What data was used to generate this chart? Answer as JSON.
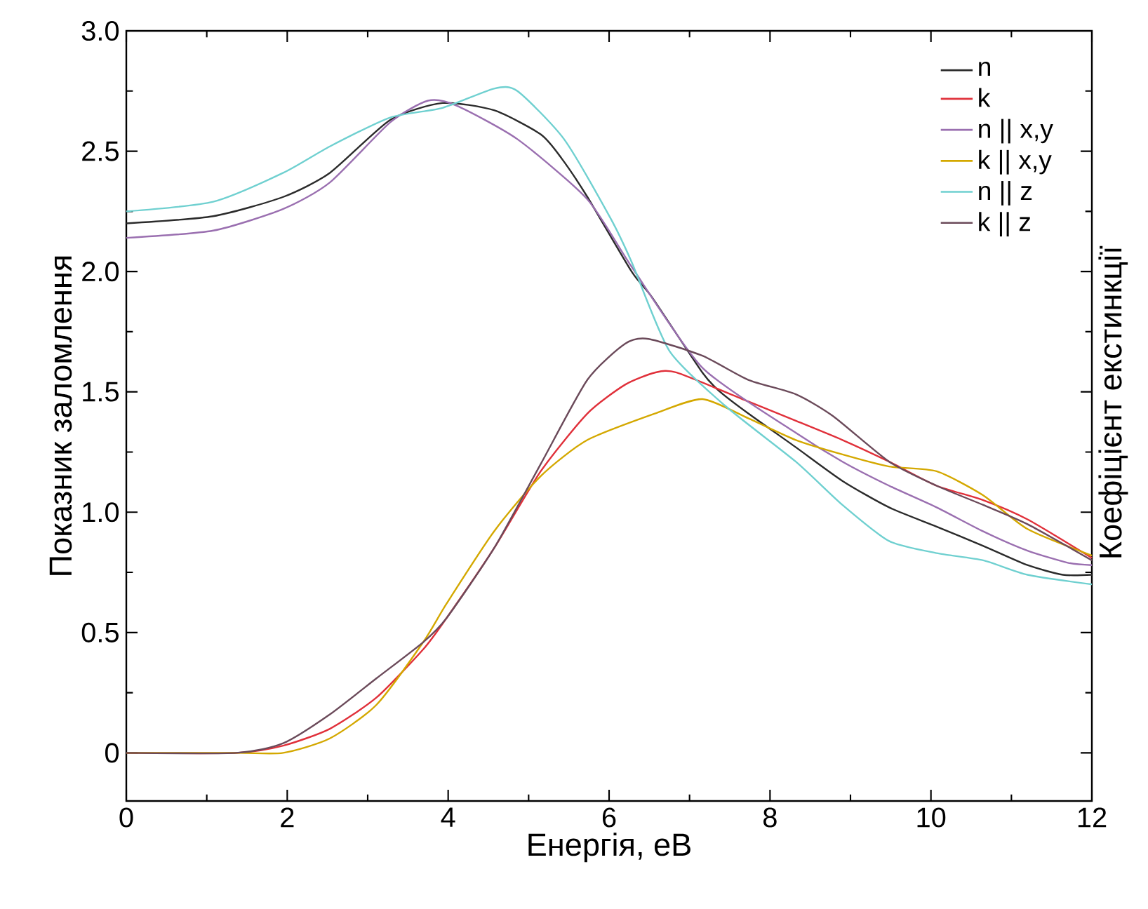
{
  "chart_data": {
    "type": "line",
    "xlabel": "Енергія, еВ",
    "ylabel": "Показник заломлення",
    "y2label": "Коефіцієнт екстинкції",
    "xlim": [
      0,
      12
    ],
    "ylim": [
      -0.2,
      3.0
    ],
    "xticks": [
      0,
      2,
      4,
      6,
      8,
      10,
      12
    ],
    "yticks": [
      0,
      0.5,
      {
        "value": 1.0,
        "label": "1.0"
      },
      1.5,
      {
        "value": 2.0,
        "label": "2.0"
      },
      2.5,
      {
        "value": 3.0,
        "label": "3.0"
      }
    ],
    "tick_labels": "xy",
    "legend": "top right",
    "grid": false,
    "marker": "none",
    "line_style": "solid",
    "series": [
      {
        "name": "n",
        "color": "#2b2b2b",
        "x": [
          0,
          1.08,
          1.95,
          2.53,
          3.28,
          3.93,
          4.57,
          5.15,
          5.41,
          5.73,
          6.28,
          6.54,
          7.16,
          7.38,
          7.73,
          8.32,
          8.9,
          9.48,
          10.07,
          10.65,
          11.2,
          11.64,
          12
        ],
        "values": [
          2.2,
          2.23,
          2.31,
          2.41,
          2.63,
          2.7,
          2.67,
          2.57,
          2.47,
          2.31,
          2.0,
          1.89,
          1.58,
          1.5,
          1.41,
          1.27,
          1.13,
          1.02,
          0.94,
          0.86,
          0.78,
          0.74,
          0.74
        ]
      },
      {
        "name": "k",
        "color": "#e0303a",
        "x": [
          0,
          1.37,
          1.95,
          2.53,
          3.11,
          3.69,
          3.98,
          4.57,
          5.15,
          5.73,
          6.2,
          6.57,
          6.84,
          7.73,
          8.32,
          8.9,
          9.48,
          10.07,
          10.65,
          11.2,
          12
        ],
        "values": [
          0,
          0,
          0.03,
          0.1,
          0.23,
          0.43,
          0.56,
          0.85,
          1.17,
          1.41,
          1.53,
          1.58,
          1.58,
          1.46,
          1.38,
          1.3,
          1.21,
          1.11,
          1.05,
          0.97,
          0.81
        ]
      },
      {
        "name": "n || x,y",
        "color": "#9a6fb0",
        "x": [
          0,
          1.08,
          1.95,
          2.53,
          3.28,
          3.75,
          4.1,
          4.86,
          5.73,
          6.28,
          7.16,
          8.32,
          8.9,
          9.48,
          10.07,
          10.65,
          11.2,
          11.7,
          12
        ],
        "values": [
          2.14,
          2.17,
          2.26,
          2.37,
          2.62,
          2.71,
          2.69,
          2.55,
          2.3,
          2.02,
          1.6,
          1.33,
          1.21,
          1.11,
          1.02,
          0.92,
          0.84,
          0.79,
          0.78
        ]
      },
      {
        "name": "k || x,y",
        "color": "#d4a800",
        "x": [
          0,
          1.37,
          1.95,
          2.53,
          3.11,
          3.69,
          3.98,
          4.57,
          5.15,
          5.73,
          6.57,
          7.16,
          7.73,
          8.32,
          8.9,
          9.48,
          10.07,
          10.65,
          11.2,
          12
        ],
        "values": [
          0,
          0,
          0,
          0.06,
          0.2,
          0.46,
          0.62,
          0.92,
          1.15,
          1.3,
          1.41,
          1.47,
          1.39,
          1.3,
          1.24,
          1.19,
          1.17,
          1.07,
          0.93,
          0.82
        ]
      },
      {
        "name": "n || z",
        "color": "#6fd0d0",
        "x": [
          0,
          1.08,
          1.95,
          2.53,
          3.28,
          3.93,
          4.57,
          4.86,
          5.44,
          6.02,
          6.28,
          6.75,
          7.45,
          8.32,
          8.9,
          9.48,
          10.07,
          10.65,
          11.2,
          12
        ],
        "values": [
          2.25,
          2.29,
          2.41,
          2.52,
          2.64,
          2.68,
          2.76,
          2.75,
          2.55,
          2.22,
          2.04,
          1.67,
          1.44,
          1.21,
          1.03,
          0.88,
          0.83,
          0.8,
          0.74,
          0.7
        ]
      },
      {
        "name": "k || z",
        "color": "#6b4a5a",
        "x": [
          0,
          1.37,
          1.95,
          2.53,
          3.11,
          3.69,
          3.98,
          4.57,
          5.15,
          5.73,
          6.2,
          6.49,
          7.16,
          7.73,
          8.32,
          8.78,
          9.48,
          10.07,
          10.65,
          11.2,
          12
        ],
        "values": [
          0,
          0,
          0.04,
          0.16,
          0.31,
          0.46,
          0.56,
          0.85,
          1.2,
          1.55,
          1.7,
          1.72,
          1.65,
          1.55,
          1.49,
          1.4,
          1.21,
          1.11,
          1.03,
          0.95,
          0.8
        ]
      }
    ]
  }
}
